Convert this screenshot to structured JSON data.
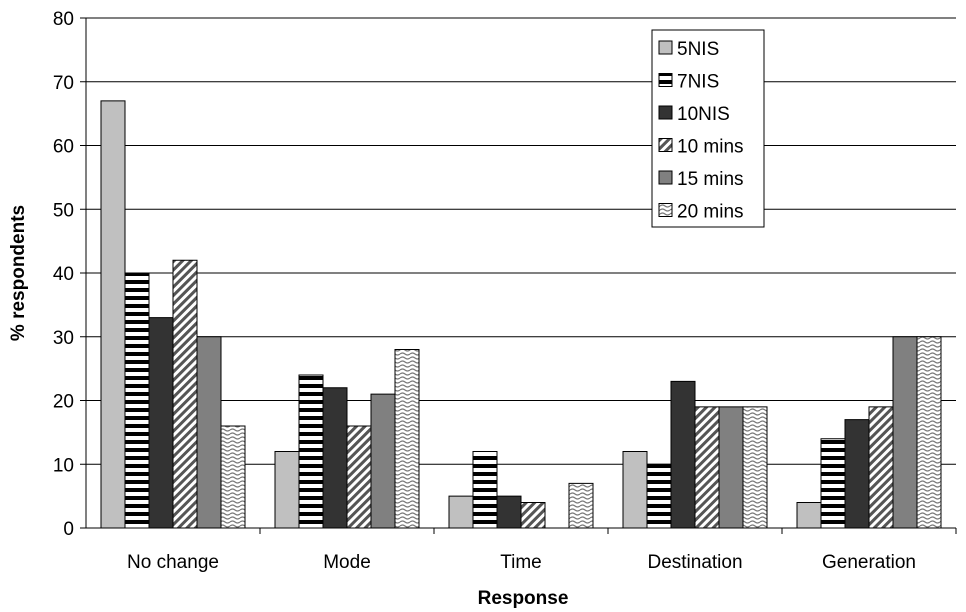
{
  "chart_data": {
    "type": "bar",
    "xlabel": "Response",
    "ylabel": "% respondents",
    "ylim": [
      0,
      80
    ],
    "yticks": [
      0,
      10,
      20,
      30,
      40,
      50,
      60,
      70,
      80
    ],
    "grid": true,
    "legend_position": "top-right",
    "categories": [
      "No change",
      "Mode",
      "Time",
      "Destination",
      "Generation"
    ],
    "series": [
      {
        "name": "5NIS",
        "pattern": "solid-light",
        "color": "#c0c0c0",
        "values": [
          67,
          12,
          5,
          12,
          4
        ]
      },
      {
        "name": "7NIS",
        "pattern": "horizontal-stripes",
        "color": "#000000",
        "values": [
          40,
          24,
          12,
          10,
          14
        ]
      },
      {
        "name": "10NIS",
        "pattern": "solid-dark",
        "color": "#333333",
        "values": [
          33,
          22,
          5,
          23,
          17
        ]
      },
      {
        "name": "10 mins",
        "pattern": "diagonal-hatch",
        "color": "#555555",
        "values": [
          42,
          16,
          4,
          19,
          19
        ]
      },
      {
        "name": "15 mins",
        "pattern": "solid-medium",
        "color": "#808080",
        "values": [
          30,
          21,
          0,
          19,
          30
        ]
      },
      {
        "name": "20 mins",
        "pattern": "wavy",
        "color": "#777777",
        "values": [
          16,
          28,
          7,
          19,
          30
        ]
      }
    ]
  }
}
